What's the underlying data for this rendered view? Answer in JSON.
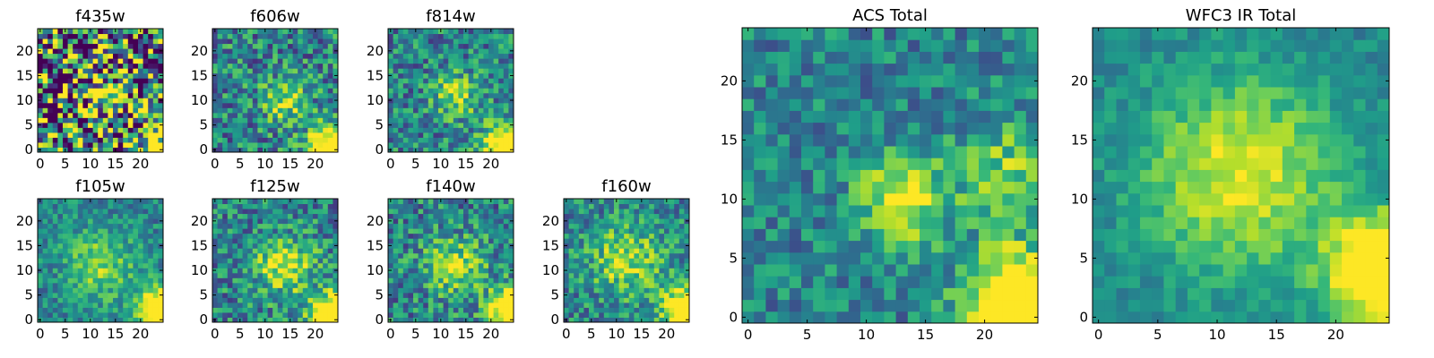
{
  "figure": {
    "colormap": [
      "#440154",
      "#482878",
      "#3e4989",
      "#31688e",
      "#26828e",
      "#1f9e89",
      "#35b779",
      "#6ece58",
      "#b5de2b",
      "#fde725"
    ]
  },
  "chart_data": [
    {
      "type": "heatmap",
      "title": "f435w",
      "grid_size": 25,
      "xlim": [
        0,
        24
      ],
      "ylim": [
        0,
        24
      ],
      "xticks": [
        "0",
        "5",
        "10",
        "15",
        "20"
      ],
      "yticks": [
        "0",
        "5",
        "10",
        "15",
        "20"
      ],
      "cmap_range": [
        0.3,
        0.75
      ],
      "noise": 0.34,
      "blobs": [
        {
          "x": 23,
          "y": 0,
          "amp": 0.35,
          "sigma": 3
        },
        {
          "x": 13,
          "y": 11,
          "amp": 0.25,
          "sigma": 3
        }
      ],
      "seed": 11
    },
    {
      "type": "heatmap",
      "title": "f606w",
      "grid_size": 25,
      "xlim": [
        0,
        24
      ],
      "ylim": [
        0,
        24
      ],
      "xticks": [
        "0",
        "5",
        "10",
        "15",
        "20"
      ],
      "yticks": [
        "0",
        "5",
        "10",
        "15",
        "20"
      ],
      "cmap_range": [
        0.1,
        0.8
      ],
      "noise": 0.22,
      "blobs": [
        {
          "x": 24,
          "y": 0,
          "amp": 0.75,
          "sigma": 3.5
        },
        {
          "x": 14,
          "y": 10,
          "amp": 0.3,
          "sigma": 3
        }
      ],
      "seed": 23
    },
    {
      "type": "heatmap",
      "title": "f814w",
      "grid_size": 25,
      "xlim": [
        0,
        24
      ],
      "ylim": [
        0,
        24
      ],
      "xticks": [
        "0",
        "5",
        "10",
        "15",
        "20"
      ],
      "yticks": [
        "0",
        "5",
        "10",
        "15",
        "20"
      ],
      "cmap_range": [
        0.1,
        0.8
      ],
      "noise": 0.2,
      "blobs": [
        {
          "x": 24,
          "y": 0,
          "amp": 0.8,
          "sigma": 3.5
        },
        {
          "x": 13,
          "y": 11,
          "amp": 0.3,
          "sigma": 3
        }
      ],
      "seed": 37
    },
    {
      "type": "heatmap",
      "title": "f105w",
      "grid_size": 25,
      "xlim": [
        0,
        24
      ],
      "ylim": [
        0,
        24
      ],
      "xticks": [
        "0",
        "5",
        "10",
        "15",
        "20"
      ],
      "yticks": [
        "0",
        "5",
        "10",
        "15",
        "20"
      ],
      "cmap_range": [
        0.1,
        0.8
      ],
      "noise": 0.14,
      "blobs": [
        {
          "x": 24,
          "y": 2,
          "amp": 0.7,
          "sigma": 3
        },
        {
          "x": 12,
          "y": 11,
          "amp": 0.25,
          "sigma": 5
        }
      ],
      "seed": 41
    },
    {
      "type": "heatmap",
      "title": "f125w",
      "grid_size": 25,
      "xlim": [
        0,
        24
      ],
      "ylim": [
        0,
        24
      ],
      "xticks": [
        "0",
        "5",
        "10",
        "15",
        "20"
      ],
      "yticks": [
        "0",
        "5",
        "10",
        "15",
        "20"
      ],
      "cmap_range": [
        0.1,
        0.8
      ],
      "noise": 0.2,
      "blobs": [
        {
          "x": 23,
          "y": 1,
          "amp": 0.65,
          "sigma": 3
        },
        {
          "x": 14,
          "y": 11,
          "amp": 0.35,
          "sigma": 4
        }
      ],
      "seed": 53
    },
    {
      "type": "heatmap",
      "title": "f140w",
      "grid_size": 25,
      "xlim": [
        0,
        24
      ],
      "ylim": [
        0,
        24
      ],
      "xticks": [
        "0",
        "5",
        "10",
        "15",
        "20"
      ],
      "yticks": [
        "0",
        "5",
        "10",
        "15",
        "20"
      ],
      "cmap_range": [
        0.1,
        0.8
      ],
      "noise": 0.2,
      "blobs": [
        {
          "x": 24,
          "y": 2,
          "amp": 0.7,
          "sigma": 3
        },
        {
          "x": 13,
          "y": 11,
          "amp": 0.3,
          "sigma": 4
        }
      ],
      "seed": 67
    },
    {
      "type": "heatmap",
      "title": "f160w",
      "grid_size": 25,
      "xlim": [
        0,
        24
      ],
      "ylim": [
        0,
        24
      ],
      "xticks": [
        "0",
        "5",
        "10",
        "15",
        "20"
      ],
      "yticks": [
        "0",
        "5",
        "10",
        "15",
        "20"
      ],
      "cmap_range": [
        0.1,
        0.8
      ],
      "noise": 0.18,
      "blobs": [
        {
          "x": 24,
          "y": 2,
          "amp": 0.7,
          "sigma": 3
        },
        {
          "x": 12,
          "y": 12,
          "amp": 0.3,
          "sigma": 5
        }
      ],
      "seed": 79
    },
    {
      "type": "heatmap",
      "title": "ACS Total",
      "grid_size": 25,
      "xlim": [
        0,
        24
      ],
      "ylim": [
        0,
        24
      ],
      "xticks": [
        "0",
        "5",
        "10",
        "15",
        "20"
      ],
      "yticks": [
        "0",
        "5",
        "10",
        "15",
        "20"
      ],
      "cmap_range": [
        0.1,
        0.8
      ],
      "noise": 0.15,
      "blobs": [
        {
          "x": 23,
          "y": 1,
          "amp": 0.75,
          "sigma": 3
        },
        {
          "x": 13,
          "y": 10,
          "amp": 0.4,
          "sigma": 2.5
        },
        {
          "x": 22,
          "y": 12,
          "amp": 0.25,
          "sigma": 3
        }
      ],
      "seed": 97
    },
    {
      "type": "heatmap",
      "title": "WFC3 IR Total",
      "grid_size": 25,
      "xlim": [
        0,
        24
      ],
      "ylim": [
        0,
        24
      ],
      "xticks": [
        "0",
        "5",
        "10",
        "15",
        "20"
      ],
      "yticks": [
        "0",
        "5",
        "10",
        "15",
        "20"
      ],
      "cmap_range": [
        0.1,
        0.8
      ],
      "noise": 0.08,
      "blobs": [
        {
          "x": 24,
          "y": 4,
          "amp": 0.7,
          "sigma": 3
        },
        {
          "x": 12,
          "y": 12,
          "amp": 0.35,
          "sigma": 6
        }
      ],
      "seed": 113
    }
  ]
}
